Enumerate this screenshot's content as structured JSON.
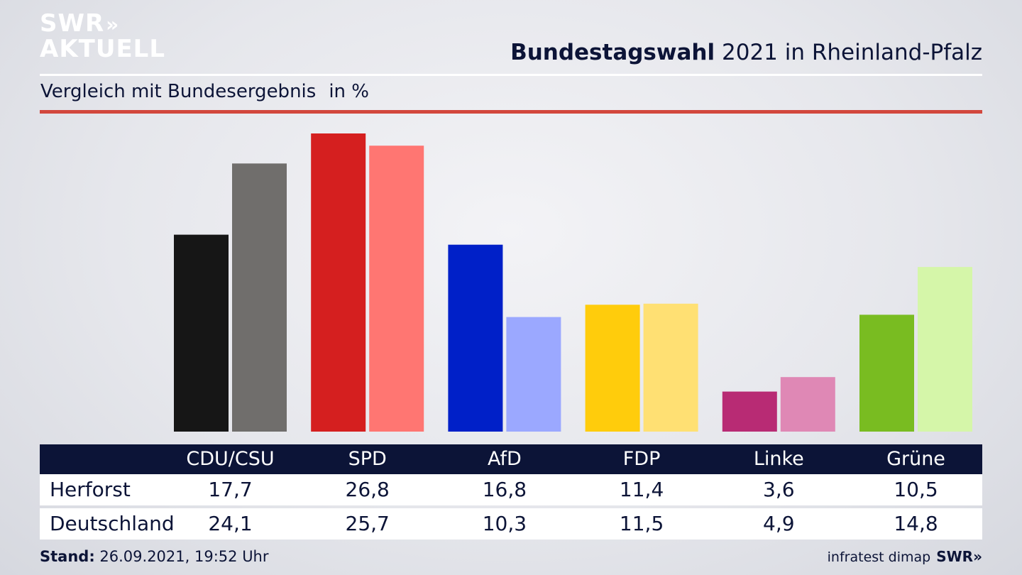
{
  "logo": {
    "line1": "SWR",
    "line1_arrows": "»",
    "line2": "AKTUELL"
  },
  "header": {
    "title_bold": "Bundestagswahl",
    "title_rest": "2021 in Rheinland-Pfalz",
    "subtitle": "Vergleich mit Bundesergebnis",
    "unit": "in %"
  },
  "chart_data": {
    "type": "bar",
    "title": "Bundestagswahl 2021 in Rheinland-Pfalz",
    "subtitle": "Vergleich mit Bundesergebnis",
    "unit": "in %",
    "categories": [
      "CDU/CSU",
      "SPD",
      "AfD",
      "FDP",
      "Linke",
      "Grüne"
    ],
    "series": [
      {
        "name": "Herforst",
        "values": [
          17.7,
          26.8,
          16.8,
          11.4,
          3.6,
          10.5
        ]
      },
      {
        "name": "Deutschland",
        "values": [
          24.1,
          25.7,
          10.3,
          11.5,
          4.9,
          14.8
        ]
      }
    ],
    "ylim": [
      0,
      27
    ],
    "grid": false,
    "colors": {
      "Herforst": [
        "#161616",
        "#d51f1f",
        "#0020c8",
        "#ffcc0c",
        "#b82b74",
        "#79bc21"
      ],
      "Deutschland": [
        "#706e6c",
        "#ff7672",
        "#9ba8ff",
        "#ffe073",
        "#df88b5",
        "#d5f6a9"
      ]
    }
  },
  "table": {
    "rows": [
      {
        "label": "Herforst",
        "values": [
          "17,7",
          "26,8",
          "16,8",
          "11,4",
          "3,6",
          "10,5"
        ]
      },
      {
        "label": "Deutschland",
        "values": [
          "24,1",
          "25,7",
          "10,3",
          "11,5",
          "4,9",
          "14,8"
        ]
      }
    ]
  },
  "footer": {
    "stand_label": "Stand:",
    "stand_value": "26.09.2021, 19:52 Uhr",
    "source": "infratest dimap",
    "brand": "SWR»"
  }
}
